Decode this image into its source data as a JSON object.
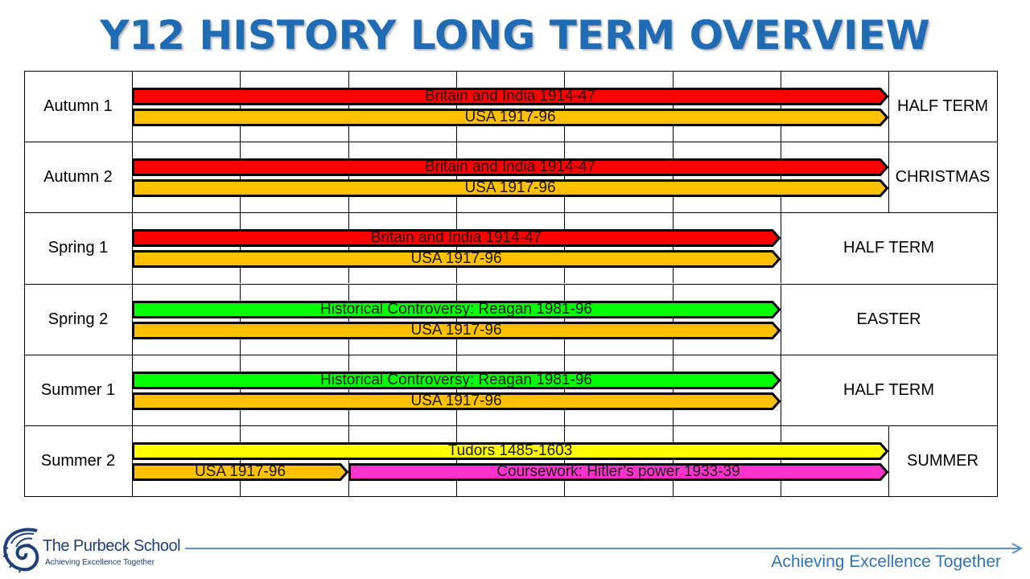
{
  "title": "Y12 HISTORY LONG TERM OVERVIEW",
  "colors": {
    "title": "#1f6cb4",
    "red": "#ff0000",
    "orange": "#ffc000",
    "green": "#00ff00",
    "yellow": "#ffff00",
    "magenta": "#ff33cc",
    "motto": "#2f73b5"
  },
  "rows": [
    {
      "term": "Autumn 1",
      "holiday": "HALF TERM",
      "weeks": 7,
      "bars": [
        {
          "label": "Britain and India 1914-47",
          "color": "red",
          "start_week": 0,
          "end_week": 7
        },
        {
          "label": "USA 1917-96",
          "color": "orange",
          "start_week": 0,
          "end_week": 7
        }
      ]
    },
    {
      "term": "Autumn 2",
      "holiday": "CHRISTMAS",
      "weeks": 7,
      "bars": [
        {
          "label": "Britain and India 1914-47",
          "color": "red",
          "start_week": 0,
          "end_week": 7
        },
        {
          "label": "USA 1917-96",
          "color": "orange",
          "start_week": 0,
          "end_week": 7
        }
      ]
    },
    {
      "term": "Spring 1",
      "holiday": "HALF TERM",
      "weeks": 6,
      "bars": [
        {
          "label": "Britain and India 1914-47",
          "color": "red",
          "start_week": 0,
          "end_week": 6
        },
        {
          "label": "USA 1917-96",
          "color": "orange",
          "start_week": 0,
          "end_week": 6
        }
      ]
    },
    {
      "term": "Spring 2",
      "holiday": "EASTER",
      "weeks": 6,
      "bars": [
        {
          "label": "Historical Controversy: Reagan 1981-96",
          "color": "green",
          "start_week": 0,
          "end_week": 6
        },
        {
          "label": "USA 1917-96",
          "color": "orange",
          "start_week": 0,
          "end_week": 6
        }
      ]
    },
    {
      "term": "Summer 1",
      "holiday": "HALF TERM",
      "weeks": 6,
      "bars": [
        {
          "label": "Historical Controversy: Reagan 1981-96",
          "color": "green",
          "start_week": 0,
          "end_week": 6
        },
        {
          "label": "USA 1917-96",
          "color": "orange",
          "start_week": 0,
          "end_week": 6
        }
      ]
    },
    {
      "term": "Summer 2",
      "holiday": "SUMMER",
      "weeks": 7,
      "bars": [
        {
          "label": "Tudors 1485-1603",
          "color": "yellow",
          "start_week": 0,
          "end_week": 7
        },
        {
          "label": "USA 1917-96",
          "color": "orange",
          "start_week": 0,
          "end_week": 2
        },
        {
          "label": "Coursework: Hitler’s power 1933-39",
          "color": "magenta",
          "start_week": 2,
          "end_week": 7,
          "same_lane_as": 1
        }
      ]
    }
  ],
  "footer": {
    "school_name": "The Purbeck School",
    "school_tagline": "Achieving Excellence Together",
    "motto": "Achieving Excellence Together",
    "logo_icon": "nautilus-shell-icon",
    "arrow_icon": "arrow-right-icon"
  }
}
